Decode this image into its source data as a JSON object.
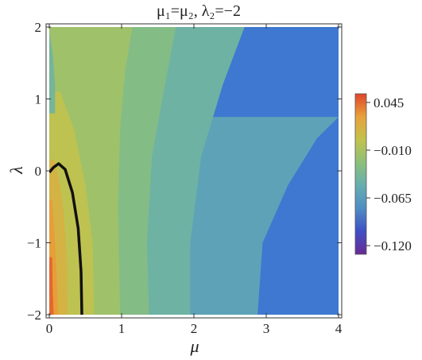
{
  "chart_data": {
    "type": "heatmap",
    "subtype": "filled-contour",
    "title": "μ₁=μ₂, λ₂=−2",
    "xlabel": "μ",
    "ylabel": "λ",
    "xlim": [
      0,
      4
    ],
    "ylim": [
      -2,
      2
    ],
    "x_ticks": [
      "0",
      "1",
      "2",
      "3",
      "4"
    ],
    "y_ticks": [
      "−2",
      "−1",
      "0",
      "1",
      "2"
    ],
    "colorbar": {
      "min": -0.13,
      "max": 0.055,
      "tick_values": [
        0.045,
        -0.01,
        -0.065,
        -0.12
      ],
      "tick_labels": [
        "0.045",
        "−0.010",
        "−0.065",
        "−0.120"
      ],
      "colors": [
        "#6a2a96",
        "#3f4fc4",
        "#4f8cc4",
        "#66aeb0",
        "#8cc07a",
        "#c2c24c",
        "#e8a23a",
        "#e0452a"
      ]
    },
    "contour_boundaries": [
      {
        "value": 0.045,
        "points": [
          [
            0.06,
            -2
          ],
          [
            0.05,
            -1.7
          ],
          [
            0.04,
            -1.2
          ]
        ]
      },
      {
        "value": 0.03,
        "points": [
          [
            0.12,
            -2
          ],
          [
            0.1,
            -1.4
          ],
          [
            0.07,
            -0.85
          ],
          [
            0.04,
            -0.4
          ]
        ]
      },
      {
        "value": 0.015,
        "points": [
          [
            0.25,
            -2
          ],
          [
            0.24,
            -1.2
          ],
          [
            0.2,
            -0.6
          ],
          [
            0.14,
            -0.15
          ],
          [
            0.07,
            0.15
          ]
        ]
      },
      {
        "value": 0.0,
        "points": [
          [
            0.62,
            -2
          ],
          [
            0.6,
            -1
          ],
          [
            0.5,
            -0.2
          ],
          [
            0.35,
            0.55
          ],
          [
            0.15,
            1.1
          ]
        ]
      },
      {
        "value": -0.015,
        "points": [
          [
            0.98,
            -2
          ],
          [
            0.95,
            -0.5
          ],
          [
            0.98,
            0.6
          ],
          [
            1.05,
            1.4
          ],
          [
            1.15,
            2
          ]
        ]
      },
      {
        "value": -0.03,
        "points": [
          [
            1.38,
            -2
          ],
          [
            1.35,
            -1
          ],
          [
            1.42,
            0.2
          ],
          [
            1.6,
            1.2
          ],
          [
            1.75,
            2
          ]
        ]
      },
      {
        "value": -0.045,
        "points": [
          [
            1.95,
            -2
          ],
          [
            1.95,
            -1
          ],
          [
            2.1,
            0.2
          ],
          [
            2.4,
            1.2
          ],
          [
            2.7,
            2
          ]
        ]
      },
      {
        "value": -0.06,
        "points": [
          [
            2.88,
            -2
          ],
          [
            2.95,
            -1
          ],
          [
            3.3,
            -0.2
          ],
          [
            3.7,
            0.45
          ],
          [
            4,
            0.75
          ]
        ]
      }
    ],
    "zero_contour": {
      "points": [
        [
          0.0,
          -0.02
        ],
        [
          0.06,
          0.05
        ],
        [
          0.13,
          0.1
        ],
        [
          0.22,
          0.02
        ],
        [
          0.32,
          -0.3
        ],
        [
          0.4,
          -0.8
        ],
        [
          0.44,
          -1.4
        ],
        [
          0.45,
          -2.0
        ]
      ]
    },
    "left_edge_feature": {
      "points": [
        [
          0,
          1.95
        ],
        [
          0.05,
          1.6
        ],
        [
          0.08,
          1.2
        ],
        [
          0.08,
          0.8
        ]
      ]
    }
  }
}
